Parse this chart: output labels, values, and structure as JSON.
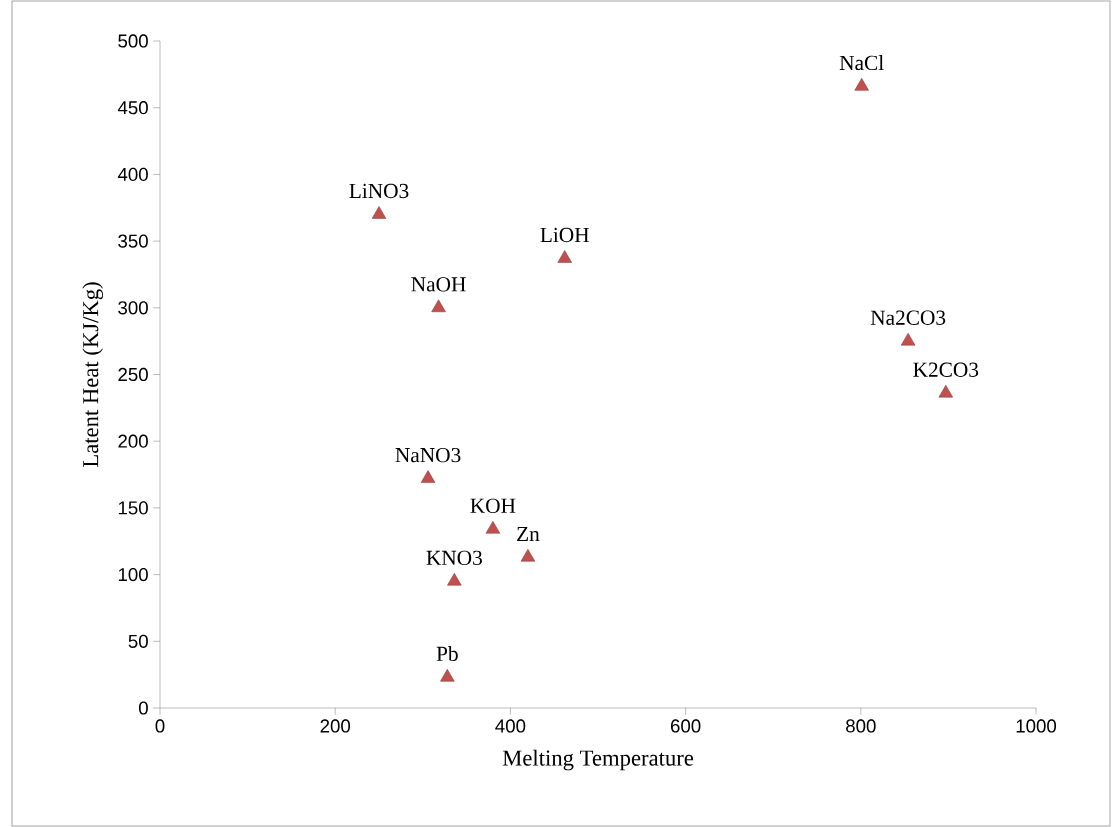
{
  "chart_data": {
    "type": "scatter",
    "xlabel": "Melting Temperature",
    "ylabel": "Latent Heat (KJ/Kg)",
    "x": [
      801,
      250,
      462,
      318,
      854,
      897,
      306,
      380,
      420,
      336,
      328
    ],
    "series": [
      {
        "color": "#c0504d",
        "values": [
          466,
          370,
          337,
          300,
          275,
          236,
          172,
          134,
          113,
          95,
          23
        ]
      }
    ],
    "annotations": [
      {
        "text": "NaCl",
        "x": 801,
        "y": 466
      },
      {
        "text": "LiNO3",
        "x": 250,
        "y": 370
      },
      {
        "text": "LiOH",
        "x": 462,
        "y": 337
      },
      {
        "text": "NaOH",
        "x": 318,
        "y": 300
      },
      {
        "text": "Na2CO3",
        "x": 854,
        "y": 275
      },
      {
        "text": "K2CO3",
        "x": 897,
        "y": 236
      },
      {
        "text": "NaNO3",
        "x": 306,
        "y": 172
      },
      {
        "text": "KOH",
        "x": 380,
        "y": 134
      },
      {
        "text": "Zn",
        "x": 420,
        "y": 113
      },
      {
        "text": "KNO3",
        "x": 336,
        "y": 95
      },
      {
        "text": "Pb",
        "x": 328,
        "y": 23
      }
    ],
    "xlim": [
      0,
      1000
    ],
    "xticks": [
      0,
      200,
      400,
      600,
      800,
      1000
    ],
    "ylim": [
      0,
      500
    ],
    "yticks": [
      0,
      50,
      100,
      150,
      200,
      250,
      300,
      350,
      400,
      450,
      500
    ],
    "marker": "triangle",
    "grid": false
  }
}
